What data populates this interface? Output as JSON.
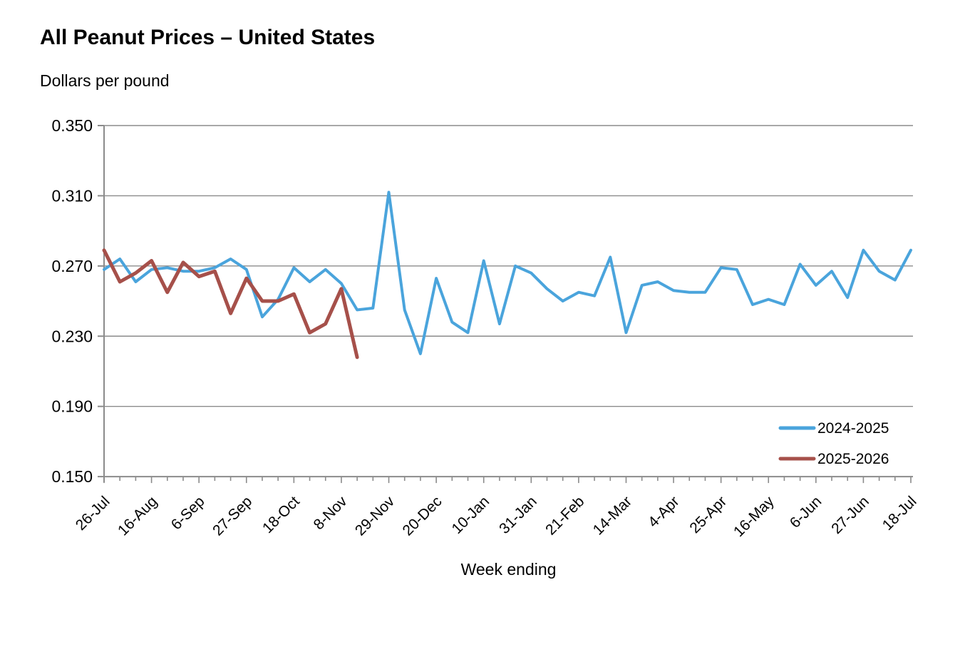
{
  "header": {
    "title": "All Peanut Prices – United States",
    "subtitle": "Dollars per pound"
  },
  "colors": {
    "series_2024_2025": "#4AA4DC",
    "series_2025_2026": "#A6504A",
    "axis": "#8B8B8B",
    "grid": "#8B8B8B",
    "text": "#000000",
    "background": "#FFFFFF"
  },
  "chart_data": {
    "type": "line",
    "title": "All Peanut Prices – United States",
    "ylabel": "Dollars per pound",
    "xlabel": "Week ending",
    "ylim": [
      0.15,
      0.35
    ],
    "yticks": [
      0.15,
      0.19,
      0.23,
      0.27,
      0.31,
      0.35
    ],
    "ytick_format_decimals": 3,
    "grid": "horizontal",
    "legend_position": "inside-right",
    "x_label_every_n_points": 3,
    "x": [
      "26-Jul",
      "2-Aug",
      "9-Aug",
      "16-Aug",
      "23-Aug",
      "30-Aug",
      "6-Sep",
      "13-Sep",
      "20-Sep",
      "27-Sep",
      "4-Oct",
      "11-Oct",
      "18-Oct",
      "25-Oct",
      "1-Nov",
      "8-Nov",
      "15-Nov",
      "22-Nov",
      "29-Nov",
      "6-Dec",
      "13-Dec",
      "20-Dec",
      "27-Dec",
      "3-Jan",
      "10-Jan",
      "17-Jan",
      "24-Jan",
      "31-Jan",
      "7-Feb",
      "14-Feb",
      "21-Feb",
      "28-Feb",
      "7-Mar",
      "14-Mar",
      "21-Mar",
      "28-Mar",
      "4-Apr",
      "11-Apr",
      "18-Apr",
      "25-Apr",
      "2-May",
      "9-May",
      "16-May",
      "23-May",
      "30-May",
      "6-Jun",
      "13-Jun",
      "20-Jun",
      "27-Jun",
      "4-Jul",
      "11-Jul",
      "18-Jul"
    ],
    "shown_x_labels": [
      "26-Jul",
      "16-Aug",
      "6-Sep",
      "27-Sep",
      "18-Oct",
      "8-Nov",
      "29-Nov",
      "20-Dec",
      "10-Jan",
      "31-Jan",
      "21-Feb",
      "14-Mar",
      "4-Apr",
      "25-Apr",
      "16-May",
      "6-Jun",
      "27-Jun",
      "18-Jul"
    ],
    "series": [
      {
        "name": "2024-2025",
        "color": "#4AA4DC",
        "stroke_width": 4,
        "values": [
          0.268,
          0.274,
          0.261,
          0.268,
          0.269,
          0.267,
          0.267,
          0.269,
          0.274,
          0.268,
          0.241,
          0.251,
          0.269,
          0.261,
          0.268,
          0.26,
          0.245,
          0.246,
          0.312,
          0.245,
          0.22,
          0.263,
          0.238,
          0.232,
          0.273,
          0.237,
          0.27,
          0.266,
          0.257,
          0.25,
          0.255,
          0.253,
          0.275,
          0.232,
          0.259,
          0.261,
          0.256,
          0.255,
          0.255,
          0.269,
          0.268,
          0.248,
          0.251,
          0.248,
          0.271,
          0.259,
          0.267,
          0.252,
          0.279,
          0.267,
          0.262,
          0.279
        ]
      },
      {
        "name": "2025-2026",
        "color": "#A6504A",
        "stroke_width": 5,
        "values": [
          0.279,
          0.261,
          0.266,
          0.273,
          0.255,
          0.272,
          0.264,
          0.267,
          0.243,
          0.263,
          0.25,
          0.25,
          0.254,
          0.232,
          0.237,
          0.257,
          0.218
        ]
      }
    ]
  },
  "legend": {
    "items": [
      {
        "label": "2024-2025",
        "color": "#4AA4DC"
      },
      {
        "label": "2025-2026",
        "color": "#A6504A"
      }
    ]
  }
}
